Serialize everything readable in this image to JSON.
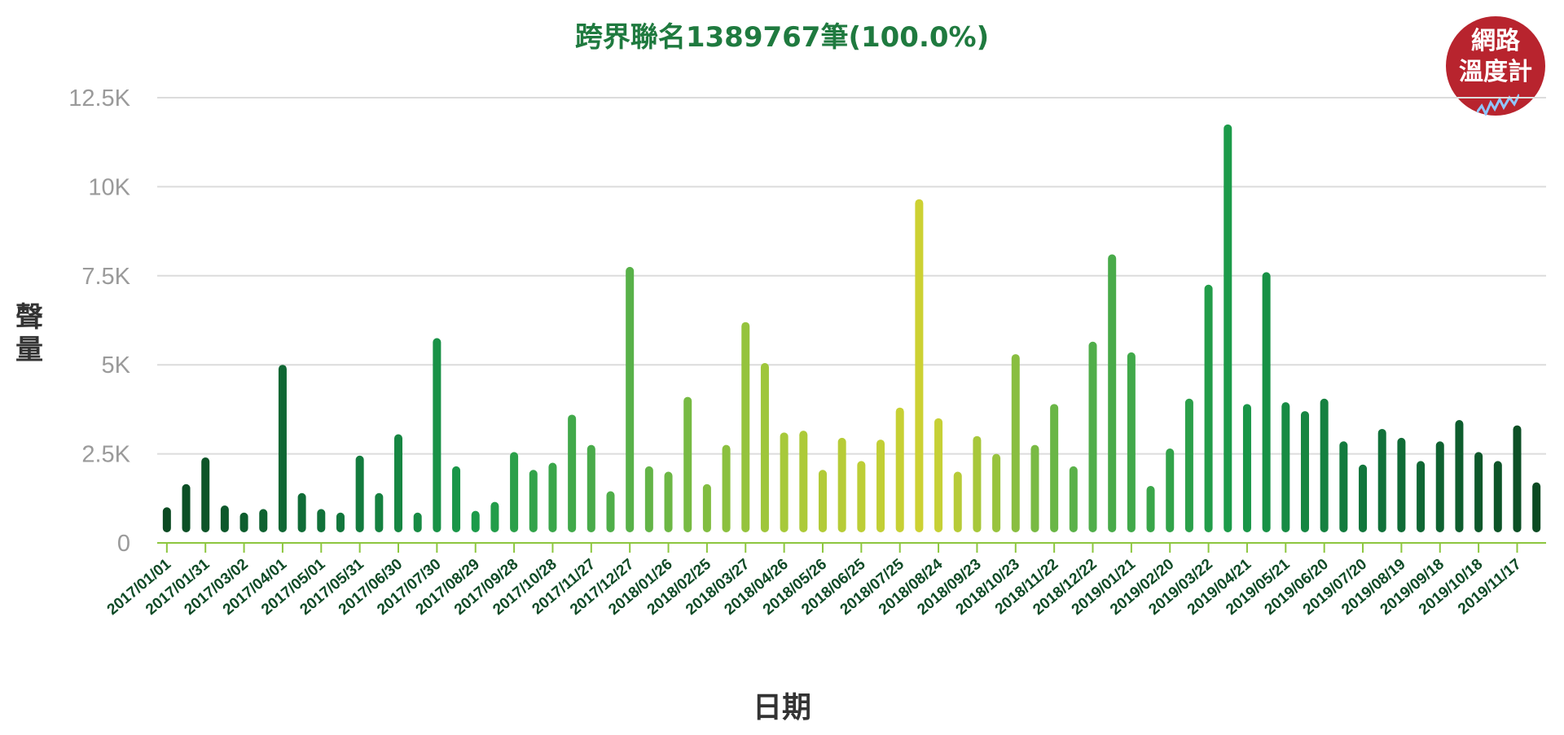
{
  "chart_data": {
    "type": "bar",
    "title": "跨界聯名1389767筆(100.0%)",
    "xlabel": "日期",
    "ylabel": "聲量",
    "ylim": [
      0,
      12500
    ],
    "y_ticks": [
      {
        "value": 0,
        "label": "0"
      },
      {
        "value": 2500,
        "label": "2.5K"
      },
      {
        "value": 5000,
        "label": "5K"
      },
      {
        "value": 7500,
        "label": "7.5K"
      },
      {
        "value": 10000,
        "label": "10K"
      },
      {
        "value": 12500,
        "label": "12.5K"
      }
    ],
    "grid": true,
    "x_tick_labels": [
      "2017/01/01",
      "2017/01/31",
      "2017/03/02",
      "2017/04/01",
      "2017/05/01",
      "2017/05/31",
      "2017/06/30",
      "2017/07/30",
      "2017/08/29",
      "2017/09/28",
      "2017/10/28",
      "2017/11/27",
      "2017/12/27",
      "2018/01/26",
      "2018/02/25",
      "2018/03/27",
      "2018/04/26",
      "2018/05/26",
      "2018/06/25",
      "2018/07/25",
      "2018/08/24",
      "2018/09/23",
      "2018/10/23",
      "2018/11/22",
      "2018/12/22",
      "2019/01/21",
      "2019/02/20",
      "2019/03/22",
      "2019/04/21",
      "2019/05/21",
      "2019/06/20",
      "2019/07/20",
      "2019/08/19",
      "2019/09/18",
      "2019/10/18",
      "2019/11/17"
    ],
    "values": [
      1000,
      1650,
      2400,
      1050,
      850,
      950,
      5000,
      1400,
      950,
      850,
      2450,
      1400,
      3050,
      850,
      5750,
      2150,
      900,
      1150,
      2550,
      2050,
      2250,
      3600,
      2750,
      1450,
      7750,
      2150,
      2000,
      4100,
      1650,
      2750,
      6200,
      5050,
      3100,
      3150,
      2050,
      2950,
      2300,
      2900,
      3800,
      9650,
      3500,
      2000,
      3000,
      2500,
      5300,
      2750,
      3900,
      2150,
      5650,
      8100,
      5350,
      1600,
      2650,
      4050,
      7250,
      11750,
      3900,
      7600,
      3950,
      3700,
      4050,
      2850,
      2200,
      3200,
      2950,
      2300,
      2850,
      3450,
      2550,
      2300,
      3300,
      1700
    ]
  },
  "logo": {
    "line1": "網路",
    "line2": "溫度計"
  }
}
